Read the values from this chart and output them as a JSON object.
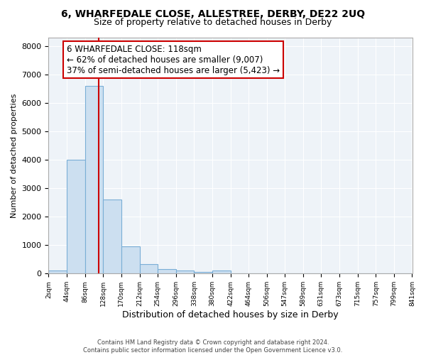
{
  "title": "6, WHARFEDALE CLOSE, ALLESTREE, DERBY, DE22 2UQ",
  "subtitle": "Size of property relative to detached houses in Derby",
  "xlabel": "Distribution of detached houses by size in Derby",
  "ylabel": "Number of detached properties",
  "footer_line1": "Contains HM Land Registry data © Crown copyright and database right 2024.",
  "footer_line2": "Contains public sector information licensed under the Open Government Licence v3.0.",
  "bin_edges": [
    2,
    44,
    86,
    128,
    170,
    212,
    254,
    296,
    338,
    380,
    422,
    464,
    506,
    547,
    589,
    631,
    673,
    715,
    757,
    799,
    841
  ],
  "bar_heights": [
    100,
    4000,
    6600,
    2600,
    950,
    325,
    150,
    100,
    50,
    100,
    0,
    0,
    0,
    0,
    0,
    0,
    0,
    0,
    0,
    0
  ],
  "bar_color": "#ccdff0",
  "bar_edge_color": "#7aaed6",
  "property_size": 118,
  "red_line_color": "#cc0000",
  "annotation_line1": "6 WHARFEDALE CLOSE: 118sqm",
  "annotation_line2": "← 62% of detached houses are smaller (9,007)",
  "annotation_line3": "37% of semi-detached houses are larger (5,423) →",
  "annotation_box_facecolor": "#ffffff",
  "annotation_box_edgecolor": "#cc0000",
  "ylim": [
    0,
    8300
  ],
  "yticks": [
    0,
    1000,
    2000,
    3000,
    4000,
    5000,
    6000,
    7000,
    8000
  ],
  "plot_bg_color": "#eef3f8",
  "background_color": "#ffffff",
  "grid_color": "#ffffff",
  "title_fontsize": 10,
  "subtitle_fontsize": 9
}
